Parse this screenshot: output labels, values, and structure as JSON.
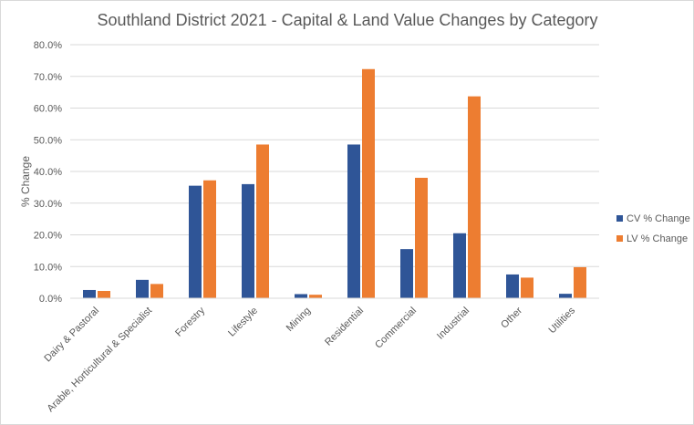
{
  "chart_data": {
    "type": "bar",
    "title": "Southland District 2021 - Capital & Land Value Changes by Category",
    "xlabel": "",
    "ylabel": "% Change",
    "categories": [
      "Dairy & Pastoral",
      "Arable, Horticultural & Specialist",
      "Forestry",
      "Lifestyle",
      "Mining",
      "Residential",
      "Commercial",
      "Industrial",
      "Other",
      "Utilities"
    ],
    "series": [
      {
        "name": "CV % Change",
        "color": "#2f5597",
        "values": [
          2.6,
          5.8,
          35.5,
          36.0,
          1.3,
          48.5,
          15.5,
          20.5,
          7.5,
          1.4
        ]
      },
      {
        "name": "LV % Change",
        "color": "#ed7d31",
        "values": [
          2.3,
          4.5,
          37.2,
          48.5,
          1.1,
          72.3,
          38.0,
          63.7,
          6.5,
          9.8
        ]
      }
    ],
    "ylim": [
      0,
      80
    ],
    "yticks": [
      "0.0%",
      "10.0%",
      "20.0%",
      "30.0%",
      "40.0%",
      "50.0%",
      "60.0%",
      "70.0%",
      "80.0%"
    ],
    "grid": true,
    "legend_position": "right"
  }
}
